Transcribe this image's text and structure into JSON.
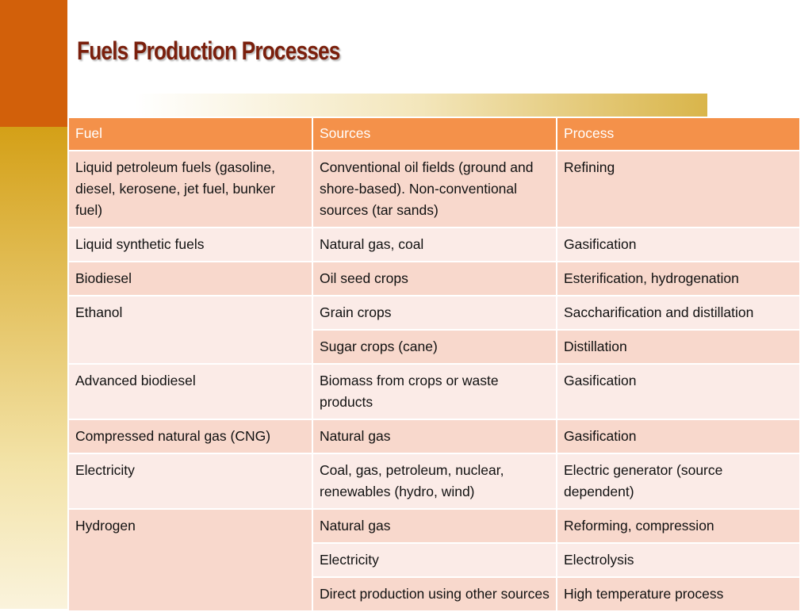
{
  "title": "Fuels Production Processes",
  "table": {
    "header": [
      "Fuel",
      "Sources",
      "Process"
    ],
    "groups": [
      {
        "fuel": "Liquid petroleum fuels (gasoline, diesel, kerosene, jet fuel, bunker fuel)",
        "entries": [
          {
            "source": "Conventional oil fields (ground and shore-based). Non-conventional sources (tar sands)",
            "process": "Refining"
          }
        ]
      },
      {
        "fuel": "Liquid synthetic fuels",
        "entries": [
          {
            "source": "Natural gas, coal",
            "process": "Gasification"
          }
        ]
      },
      {
        "fuel": "Biodiesel",
        "entries": [
          {
            "source": "Oil seed crops",
            "process": "Esterification, hydrogenation"
          }
        ]
      },
      {
        "fuel": "Ethanol",
        "entries": [
          {
            "source": "Grain crops",
            "process": "Saccharification and distillation"
          },
          {
            "source": "Sugar crops (cane)",
            "process": "Distillation"
          }
        ]
      },
      {
        "fuel": "Advanced biodiesel",
        "entries": [
          {
            "source": "Biomass from crops or waste products",
            "process": "Gasification"
          }
        ]
      },
      {
        "fuel": "Compressed natural gas (CNG)",
        "entries": [
          {
            "source": "Natural gas",
            "process": "Gasification"
          }
        ]
      },
      {
        "fuel": "Electricity",
        "entries": [
          {
            "source": "Coal, gas, petroleum, nuclear, renewables (hydro, wind)",
            "process": "Electric generator (source dependent)"
          }
        ]
      },
      {
        "fuel": "Hydrogen",
        "entries": [
          {
            "source": "Natural gas",
            "process": "Reforming, compression"
          },
          {
            "source": "Electricity",
            "process": "Electrolysis"
          },
          {
            "source": "Direct production using other sources",
            "process": "High temperature process"
          }
        ]
      }
    ]
  }
}
